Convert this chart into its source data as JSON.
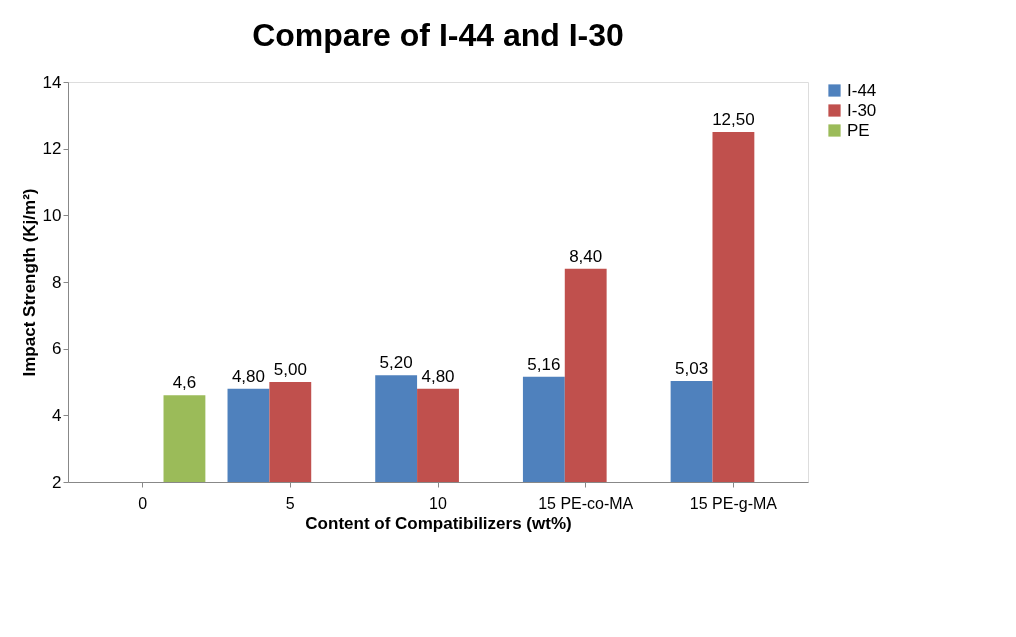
{
  "chart_data": {
    "type": "bar",
    "title": "Compare of I-44 and I-30",
    "xlabel": "Content of Compatibilizers (wt%)",
    "ylabel": "Impact Strength (Kj/m²)",
    "categories": [
      "0",
      "5",
      "10",
      "15 PE-co-MA",
      "15 PE-g-MA"
    ],
    "series": [
      {
        "name": "I-44",
        "color": "#4f81bd",
        "values": [
          null,
          4.8,
          5.2,
          5.16,
          5.03
        ],
        "value_labels": [
          null,
          "4,80",
          "5,20",
          "5,16",
          "5,03"
        ]
      },
      {
        "name": "I-30",
        "color": "#c0504d",
        "values": [
          null,
          5.0,
          4.8,
          8.4,
          12.5
        ],
        "value_labels": [
          null,
          "5,00",
          "4,80",
          "8,40",
          "12,50"
        ]
      },
      {
        "name": "PE",
        "color": "#9bbb59",
        "values": [
          4.6,
          null,
          null,
          null,
          null
        ],
        "value_labels": [
          "4,6",
          null,
          null,
          null,
          null
        ]
      }
    ],
    "ylim": [
      2,
      14
    ],
    "yticks": [
      2,
      4,
      6,
      8,
      10,
      12,
      14
    ],
    "grid": false,
    "legend": "right"
  }
}
